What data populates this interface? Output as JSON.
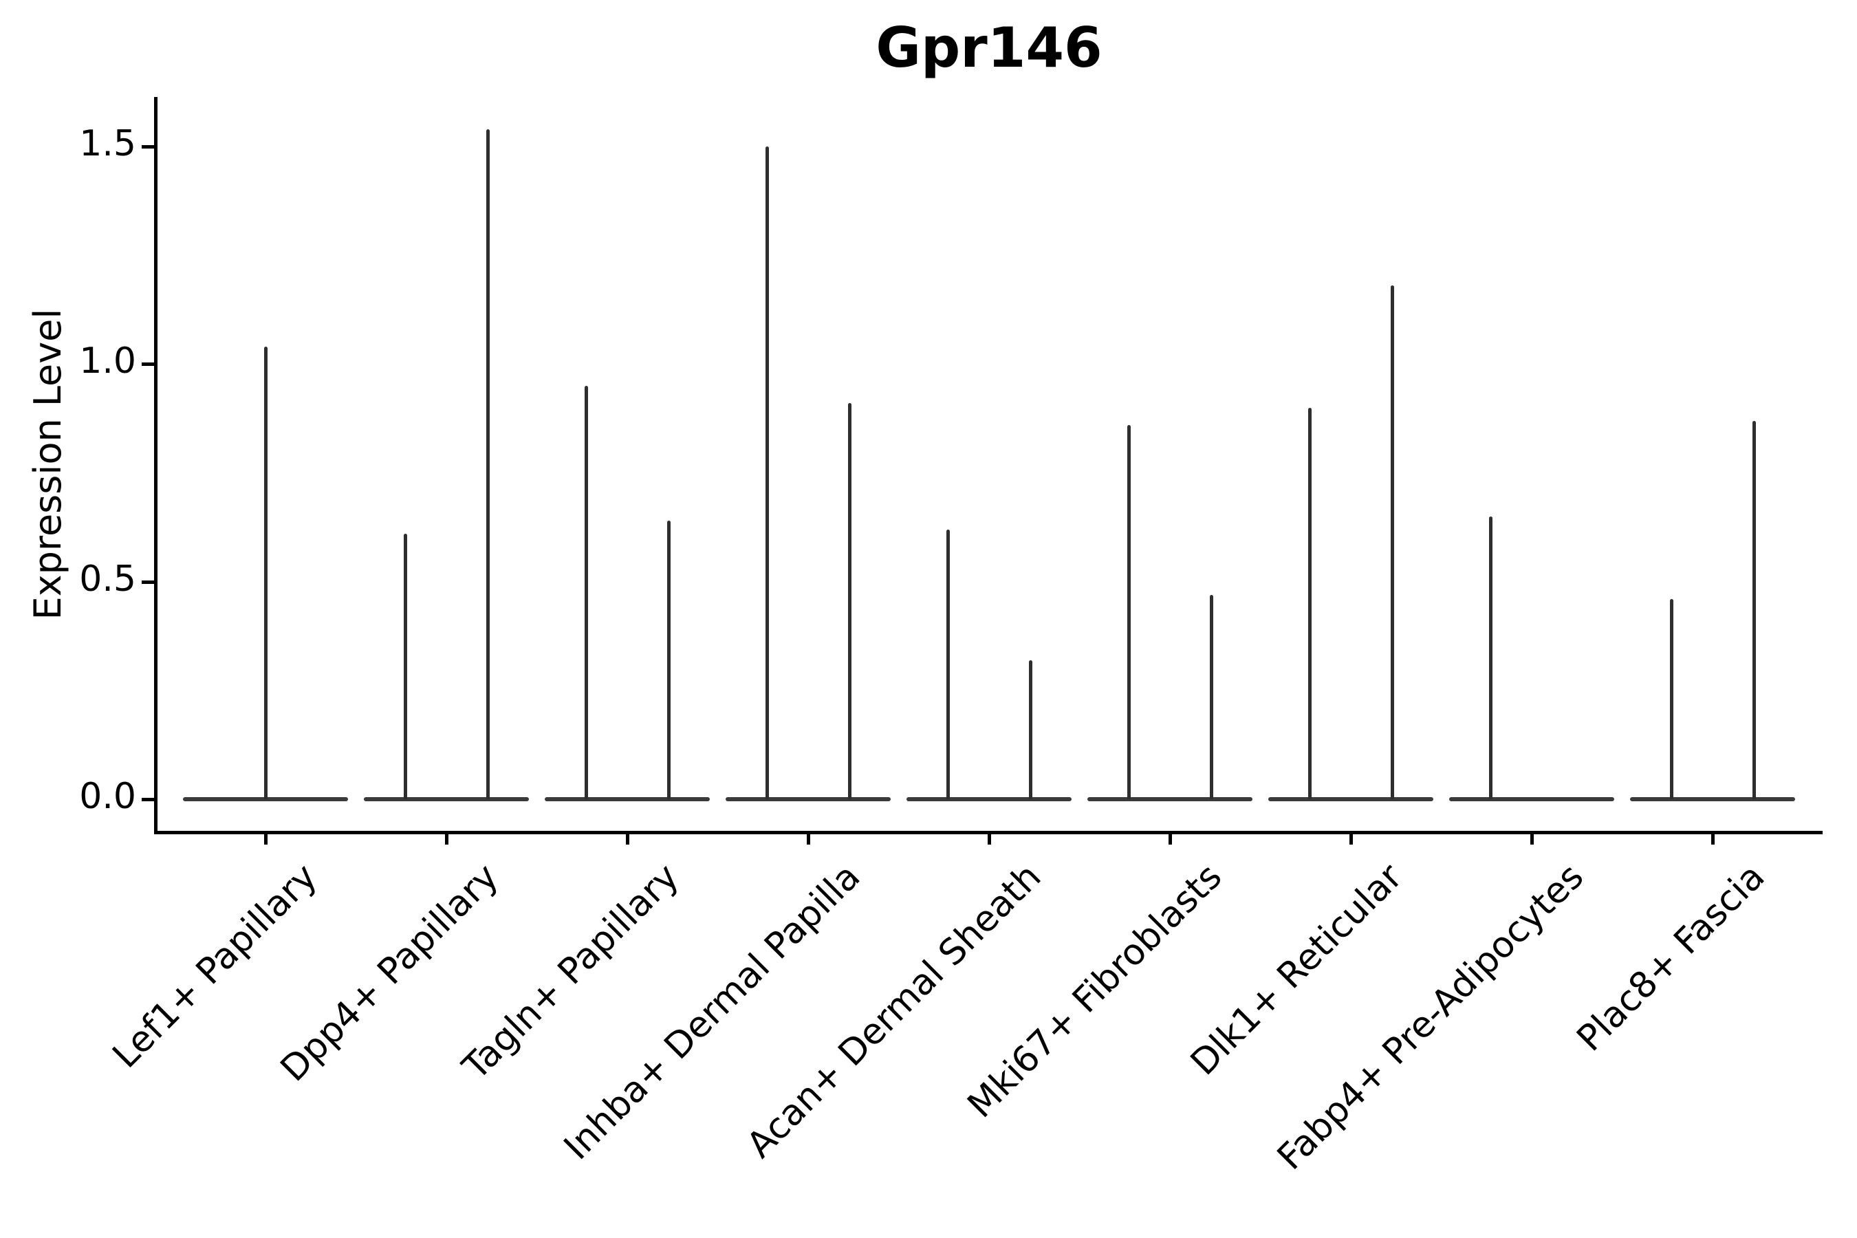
{
  "title": "Gpr146",
  "y_axis": {
    "label": "Expression Level",
    "tick_labels": [
      "0.0",
      "0.5",
      "1.0",
      "1.5"
    ]
  },
  "colors": {
    "background": "#ffffff",
    "spine": "#000000",
    "text": "#000000",
    "violin_spike": "#2e2e2e",
    "violin_baseline": "#3a3a3a"
  },
  "chart_data": {
    "type": "violin",
    "title": "Gpr146",
    "xlabel": "",
    "ylabel": "Expression Level",
    "ylim": [
      -0.08,
      1.61
    ],
    "yticks": [
      0.0,
      0.5,
      1.0,
      1.5
    ],
    "ytick_labels": [
      "0.0",
      "0.5",
      "1.0",
      "1.5"
    ],
    "grid": false,
    "legend": "none",
    "categories": [
      "Lef1+ Papillary",
      "Dpp4+ Papillary",
      "Tagln+ Papillary",
      "Inhba+ Dermal Papilla",
      "Acan+ Dermal Sheath",
      "Mki67+ Fibroblasts",
      "Dlk1+ Reticular",
      "Fabp4+ Pre-Adipocytes",
      "Plac8+ Fascia"
    ],
    "series": [
      {
        "category": "Lef1+ Papillary",
        "violins": [
          {
            "side": "center",
            "max_expression": 1.04
          }
        ]
      },
      {
        "category": "Dpp4+ Papillary",
        "violins": [
          {
            "side": "left",
            "max_expression": 0.61
          },
          {
            "side": "right",
            "max_expression": 1.54
          }
        ]
      },
      {
        "category": "Tagln+ Papillary",
        "violins": [
          {
            "side": "left",
            "max_expression": 0.95
          },
          {
            "side": "right",
            "max_expression": 0.64
          }
        ]
      },
      {
        "category": "Inhba+ Dermal Papilla",
        "violins": [
          {
            "side": "left",
            "max_expression": 1.5
          },
          {
            "side": "right",
            "max_expression": 0.91
          }
        ]
      },
      {
        "category": "Acan+ Dermal Sheath",
        "violins": [
          {
            "side": "left",
            "max_expression": 0.62
          },
          {
            "side": "right",
            "max_expression": 0.32
          }
        ]
      },
      {
        "category": "Mki67+ Fibroblasts",
        "violins": [
          {
            "side": "left",
            "max_expression": 0.86
          },
          {
            "side": "right",
            "max_expression": 0.47
          }
        ]
      },
      {
        "category": "Dlk1+ Reticular",
        "violins": [
          {
            "side": "left",
            "max_expression": 0.9
          },
          {
            "side": "right",
            "max_expression": 1.18
          }
        ]
      },
      {
        "category": "Fabp4+ Pre-Adipocytes",
        "violins": [
          {
            "side": "left",
            "max_expression": 0.65
          }
        ]
      },
      {
        "category": "Plac8+ Fascia",
        "violins": [
          {
            "side": "left",
            "max_expression": 0.46
          },
          {
            "side": "right",
            "max_expression": 0.87
          }
        ]
      }
    ],
    "notes": "All violins are fully collapsed at expression 0 (flat horizontal body) with a single thin density spike rising to the group's maximum expression value."
  }
}
